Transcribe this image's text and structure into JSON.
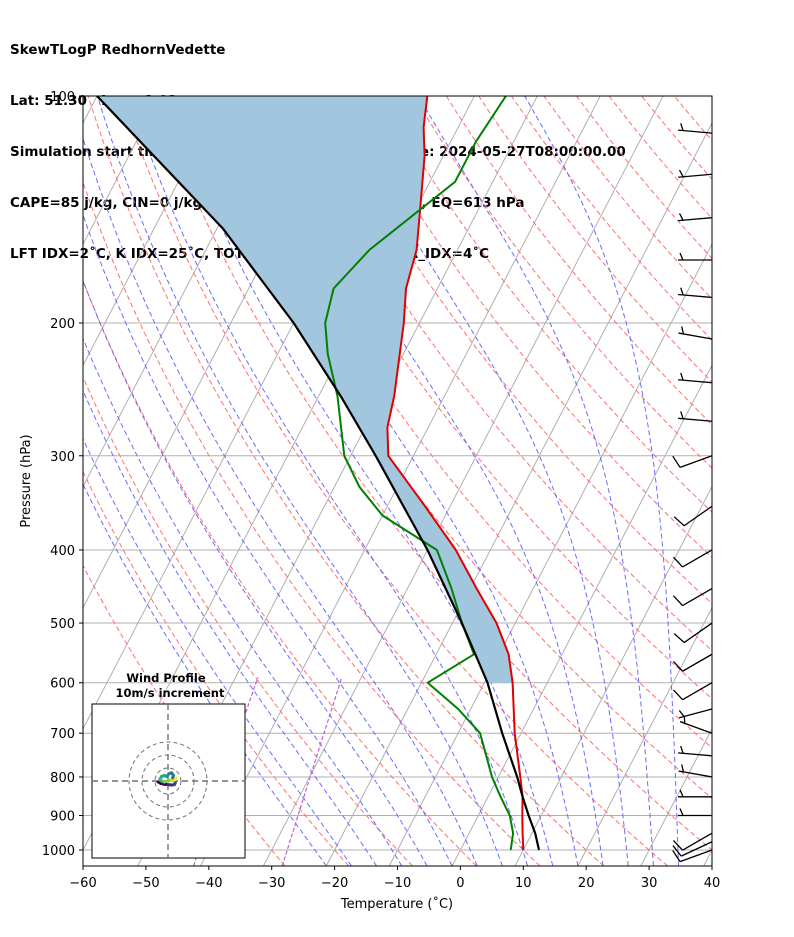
{
  "header": {
    "line1": "SkewTLogP RedhornVedette",
    "line2": "Lat: 51.30   Lon: -1.92",
    "line3": "Simulation start time: 2024-05-25_00:00:00, Valid time: 2024-05-27T08:00:00.00",
    "line4": "CAPE=85 j/kg, CIN=0 j/kg, LCL=954 hPa, LFC=962 hPa, EQ=613 hPa",
    "line5": "LFT IDX=2˚C, K IDX=25˚C, TOTAL TOTS=51˚C, SHWTR_IDX=4˚C"
  },
  "inset": {
    "title1": "Wind Profile",
    "title2": "10m/s increment"
  },
  "chart_data": {
    "type": "skew-t",
    "xlabel": "Temperature (˚C)",
    "ylabel": "Pressure (hPa)",
    "xlim": [
      -60,
      40
    ],
    "ylim": [
      1050,
      100
    ],
    "x_ticks": [
      -60,
      -50,
      -40,
      -30,
      -20,
      -10,
      0,
      10,
      20,
      30,
      40
    ],
    "y_ticks": [
      1000,
      900,
      800,
      700,
      600,
      500,
      400,
      300,
      200,
      100
    ],
    "grid": true,
    "temperature_color": "#e00000",
    "dewpoint_color": "#008000",
    "parcel_color": "#000000",
    "cape_fill_color": "#a3c6df",
    "dry_adiabat_color": "#ff6e6e",
    "moist_adiabat_color": "#6a6aff",
    "mixing_ratio_color": "#c060d0",
    "temperature": [
      {
        "p": 1000,
        "t": 10.0
      },
      {
        "p": 950,
        "t": 8.5
      },
      {
        "p": 900,
        "t": 7.0
      },
      {
        "p": 850,
        "t": 5.5
      },
      {
        "p": 800,
        "t": 3.5
      },
      {
        "p": 700,
        "t": -1.0
      },
      {
        "p": 600,
        "t": -5.5
      },
      {
        "p": 550,
        "t": -8.5
      },
      {
        "p": 500,
        "t": -13.0
      },
      {
        "p": 450,
        "t": -19.0
      },
      {
        "p": 400,
        "t": -25.5
      },
      {
        "p": 350,
        "t": -34.0
      },
      {
        "p": 300,
        "t": -44.0
      },
      {
        "p": 275,
        "t": -46.5
      },
      {
        "p": 250,
        "t": -48.0
      },
      {
        "p": 200,
        "t": -52.5
      },
      {
        "p": 180,
        "t": -55.0
      },
      {
        "p": 160,
        "t": -56.5
      },
      {
        "p": 140,
        "t": -59.5
      },
      {
        "p": 120,
        "t": -63.0
      },
      {
        "p": 110,
        "t": -65.5
      },
      {
        "p": 100,
        "t": -67.5
      }
    ],
    "dewpoint": [
      {
        "p": 1000,
        "t": 8.0
      },
      {
        "p": 950,
        "t": 7.0
      },
      {
        "p": 900,
        "t": 5.0
      },
      {
        "p": 850,
        "t": 2.0
      },
      {
        "p": 800,
        "t": -1.0
      },
      {
        "p": 700,
        "t": -6.5
      },
      {
        "p": 650,
        "t": -12.0
      },
      {
        "p": 600,
        "t": -19.0
      },
      {
        "p": 550,
        "t": -14.0
      },
      {
        "p": 500,
        "t": -18.5
      },
      {
        "p": 450,
        "t": -23.0
      },
      {
        "p": 400,
        "t": -28.5
      },
      {
        "p": 360,
        "t": -40.0
      },
      {
        "p": 330,
        "t": -46.0
      },
      {
        "p": 300,
        "t": -51.0
      },
      {
        "p": 250,
        "t": -57.0
      },
      {
        "p": 220,
        "t": -62.0
      },
      {
        "p": 200,
        "t": -65.0
      },
      {
        "p": 180,
        "t": -66.5
      },
      {
        "p": 160,
        "t": -64.0
      },
      {
        "p": 130,
        "t": -56.0
      },
      {
        "p": 115,
        "t": -56.0
      },
      {
        "p": 100,
        "t": -55.0
      }
    ],
    "parcel": [
      {
        "p": 1000,
        "t": 12.5
      },
      {
        "p": 950,
        "t": 10.5
      },
      {
        "p": 900,
        "t": 8.0
      },
      {
        "p": 850,
        "t": 5.5
      },
      {
        "p": 800,
        "t": 3.0
      },
      {
        "p": 700,
        "t": -3.0
      },
      {
        "p": 600,
        "t": -9.5
      },
      {
        "p": 500,
        "t": -18.5
      },
      {
        "p": 400,
        "t": -30.0
      },
      {
        "p": 300,
        "t": -46.0
      },
      {
        "p": 250,
        "t": -56.5
      },
      {
        "p": 200,
        "t": -70.0
      },
      {
        "p": 150,
        "t": -89.0
      },
      {
        "p": 100,
        "t": -120.0
      }
    ],
    "wind_barbs": [
      {
        "p": 1000,
        "dir": 250,
        "speed_kt": 10
      },
      {
        "p": 975,
        "dir": 245,
        "speed_kt": 10
      },
      {
        "p": 950,
        "dir": 240,
        "speed_kt": 10
      },
      {
        "p": 900,
        "dir": 270,
        "speed_kt": 5
      },
      {
        "p": 850,
        "dir": 270,
        "speed_kt": 5
      },
      {
        "p": 800,
        "dir": 280,
        "speed_kt": 5
      },
      {
        "p": 750,
        "dir": 275,
        "speed_kt": 5
      },
      {
        "p": 700,
        "dir": 290,
        "speed_kt": 5
      },
      {
        "p": 650,
        "dir": 255,
        "speed_kt": 5
      },
      {
        "p": 600,
        "dir": 240,
        "speed_kt": 10
      },
      {
        "p": 550,
        "dir": 240,
        "speed_kt": 10
      },
      {
        "p": 500,
        "dir": 235,
        "speed_kt": 10
      },
      {
        "p": 450,
        "dir": 240,
        "speed_kt": 10
      },
      {
        "p": 400,
        "dir": 240,
        "speed_kt": 10
      },
      {
        "p": 350,
        "dir": 235,
        "speed_kt": 10
      },
      {
        "p": 300,
        "dir": 250,
        "speed_kt": 10
      },
      {
        "p": 270,
        "dir": 275,
        "speed_kt": 5
      },
      {
        "p": 240,
        "dir": 275,
        "speed_kt": 5
      },
      {
        "p": 210,
        "dir": 280,
        "speed_kt": 5
      },
      {
        "p": 185,
        "dir": 275,
        "speed_kt": 5
      },
      {
        "p": 165,
        "dir": 270,
        "speed_kt": 5
      },
      {
        "p": 145,
        "dir": 265,
        "speed_kt": 5
      },
      {
        "p": 127,
        "dir": 265,
        "speed_kt": 5
      },
      {
        "p": 112,
        "dir": 275,
        "speed_kt": 5
      }
    ],
    "hodograph": {
      "rings_ms": [
        10,
        20,
        30
      ],
      "u": [
        -5.5,
        -4,
        -2,
        0,
        2,
        3.5,
        4,
        3.5,
        2.5,
        3,
        2,
        0.5,
        -0.5,
        -2,
        -3.5,
        -4.5,
        -3.5,
        -2,
        0,
        1.5,
        3,
        4,
        4.5
      ],
      "v": [
        -0.5,
        -1.3,
        -1.8,
        -2,
        -2.2,
        -2,
        -1,
        0.2,
        1.5,
        3,
        4.5,
        4,
        2.5,
        3,
        2.5,
        1,
        0,
        -0.5,
        0,
        0.5,
        0.2,
        0.8,
        1.5
      ]
    }
  }
}
